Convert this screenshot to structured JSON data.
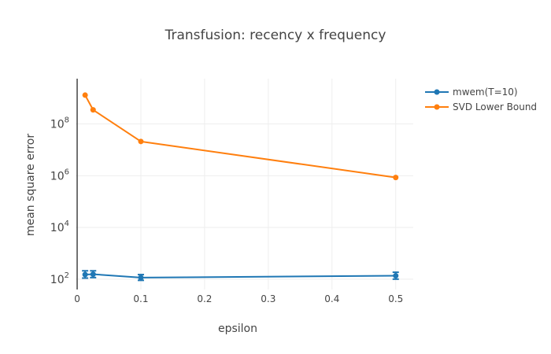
{
  "chart_data": {
    "type": "line",
    "title": "Transfusion: recency x frequency",
    "xlabel": "epsilon",
    "ylabel": "mean square error",
    "xlim": [
      -0.0025,
      0.5275
    ],
    "ylim_log10": [
      1.6,
      9.75
    ],
    "y_scale": "log",
    "x_ticks": [
      0,
      0.1,
      0.2,
      0.3,
      0.4,
      0.5
    ],
    "x_tick_labels": [
      "0",
      "0.1",
      "0.2",
      "0.3",
      "0.4",
      "0.5"
    ],
    "y_ticks": [
      100,
      10000,
      1000000,
      100000000
    ],
    "y_tick_labels": [
      {
        "base": "10",
        "exp": "2"
      },
      {
        "base": "10",
        "exp": "4"
      },
      {
        "base": "10",
        "exp": "6"
      },
      {
        "base": "10",
        "exp": "8"
      }
    ],
    "grid": true,
    "legend_position": "top-right",
    "series": [
      {
        "name": "mwem(T=10)",
        "color": "#1f77b4",
        "x": [
          0.0125,
          0.025,
          0.1,
          0.5
        ],
        "y": [
          150,
          155,
          115,
          135
        ],
        "error_low": [
          110,
          115,
          90,
          100
        ],
        "error_high": [
          210,
          210,
          150,
          185
        ]
      },
      {
        "name": "SVD Lower Bound",
        "color": "#ff7f0e",
        "x": [
          0.0125,
          0.025,
          0.1,
          0.5
        ],
        "y": [
          1300000000,
          350000000,
          21000000,
          850000
        ],
        "error_low": null,
        "error_high": null
      }
    ]
  }
}
